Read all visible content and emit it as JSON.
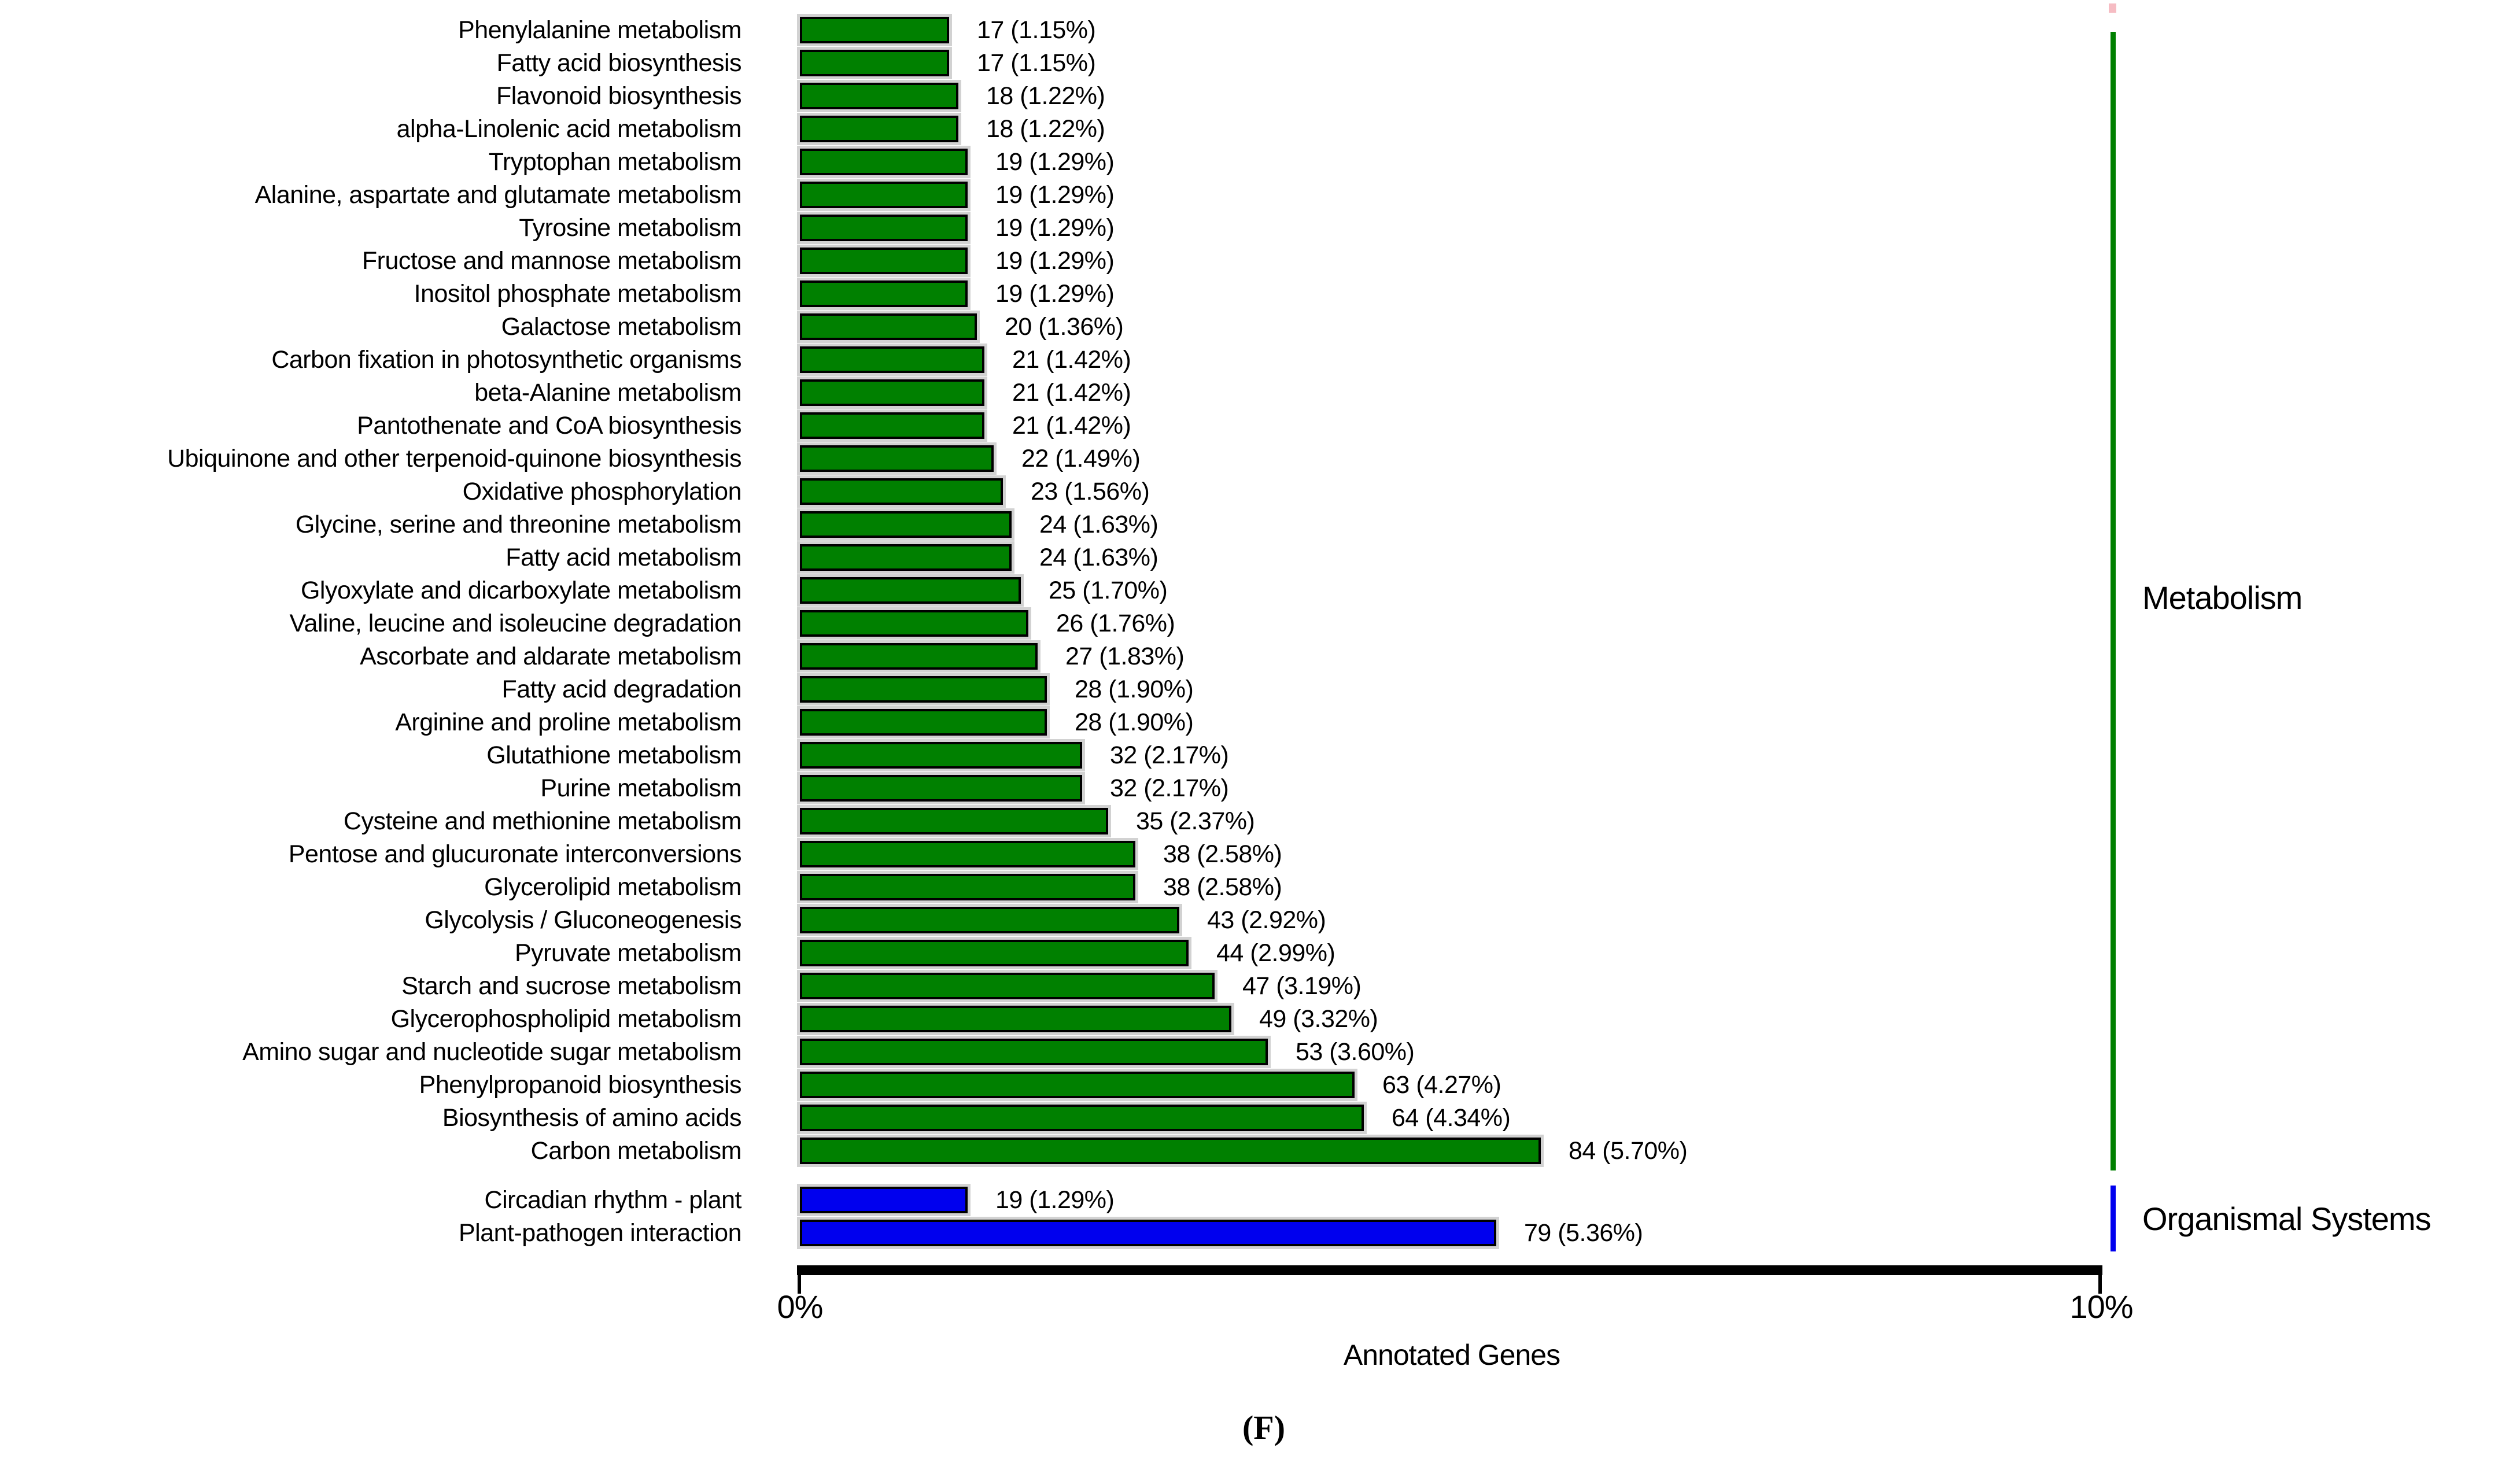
{
  "chart_data": {
    "type": "bar",
    "orientation": "horizontal",
    "title": "",
    "xlabel": "Annotated Genes",
    "ylabel": "",
    "caption": "(F)",
    "value_format": "count (percent of annotated genes)",
    "x_axis": {
      "range": [
        0,
        10
      ],
      "unit": "%",
      "tick_labels": [
        "0%",
        "10%"
      ],
      "grid": false
    },
    "legend_position": "right",
    "colors": {
      "metabolism": "#008000",
      "organismal_systems": "#0000EE",
      "bar_border": "#000000",
      "bar_halo": "#d2d2d2",
      "axis": "#000000",
      "cropped_artifact_pink": "#f6bcc3"
    },
    "groups": [
      {
        "name": "Metabolism",
        "color": "#008000",
        "items": [
          {
            "label": "Phenylalanine metabolism",
            "count": 17,
            "percent": 1.15,
            "value_label": "17 (1.15%)"
          },
          {
            "label": "Fatty acid biosynthesis",
            "count": 17,
            "percent": 1.15,
            "value_label": "17 (1.15%)"
          },
          {
            "label": "Flavonoid biosynthesis",
            "count": 18,
            "percent": 1.22,
            "value_label": "18 (1.22%)"
          },
          {
            "label": "alpha-Linolenic acid metabolism",
            "count": 18,
            "percent": 1.22,
            "value_label": "18 (1.22%)"
          },
          {
            "label": "Tryptophan metabolism",
            "count": 19,
            "percent": 1.29,
            "value_label": "19 (1.29%)"
          },
          {
            "label": "Alanine, aspartate and glutamate metabolism",
            "count": 19,
            "percent": 1.29,
            "value_label": "19 (1.29%)"
          },
          {
            "label": "Tyrosine metabolism",
            "count": 19,
            "percent": 1.29,
            "value_label": "19 (1.29%)"
          },
          {
            "label": "Fructose and mannose metabolism",
            "count": 19,
            "percent": 1.29,
            "value_label": "19 (1.29%)"
          },
          {
            "label": "Inositol phosphate metabolism",
            "count": 19,
            "percent": 1.29,
            "value_label": "19 (1.29%)"
          },
          {
            "label": "Galactose metabolism",
            "count": 20,
            "percent": 1.36,
            "value_label": "20 (1.36%)"
          },
          {
            "label": "Carbon fixation in photosynthetic organisms",
            "count": 21,
            "percent": 1.42,
            "value_label": "21 (1.42%)"
          },
          {
            "label": "beta-Alanine metabolism",
            "count": 21,
            "percent": 1.42,
            "value_label": "21 (1.42%)"
          },
          {
            "label": "Pantothenate and CoA biosynthesis",
            "count": 21,
            "percent": 1.42,
            "value_label": "21 (1.42%)"
          },
          {
            "label": "Ubiquinone and other terpenoid-quinone biosynthesis",
            "count": 22,
            "percent": 1.49,
            "value_label": "22 (1.49%)"
          },
          {
            "label": "Oxidative phosphorylation",
            "count": 23,
            "percent": 1.56,
            "value_label": "23 (1.56%)"
          },
          {
            "label": "Glycine, serine and threonine metabolism",
            "count": 24,
            "percent": 1.63,
            "value_label": "24 (1.63%)"
          },
          {
            "label": "Fatty acid metabolism",
            "count": 24,
            "percent": 1.63,
            "value_label": "24 (1.63%)"
          },
          {
            "label": "Glyoxylate and dicarboxylate metabolism",
            "count": 25,
            "percent": 1.7,
            "value_label": "25 (1.70%)"
          },
          {
            "label": "Valine, leucine and isoleucine degradation",
            "count": 26,
            "percent": 1.76,
            "value_label": "26 (1.76%)"
          },
          {
            "label": "Ascorbate and aldarate metabolism",
            "count": 27,
            "percent": 1.83,
            "value_label": "27 (1.83%)"
          },
          {
            "label": "Fatty acid degradation",
            "count": 28,
            "percent": 1.9,
            "value_label": "28 (1.90%)"
          },
          {
            "label": "Arginine and proline metabolism",
            "count": 28,
            "percent": 1.9,
            "value_label": "28 (1.90%)"
          },
          {
            "label": "Glutathione metabolism",
            "count": 32,
            "percent": 2.17,
            "value_label": "32 (2.17%)"
          },
          {
            "label": "Purine metabolism",
            "count": 32,
            "percent": 2.17,
            "value_label": "32 (2.17%)"
          },
          {
            "label": "Cysteine and methionine metabolism",
            "count": 35,
            "percent": 2.37,
            "value_label": "35 (2.37%)"
          },
          {
            "label": "Pentose and glucuronate interconversions",
            "count": 38,
            "percent": 2.58,
            "value_label": "38 (2.58%)"
          },
          {
            "label": "Glycerolipid metabolism",
            "count": 38,
            "percent": 2.58,
            "value_label": "38 (2.58%)"
          },
          {
            "label": "Glycolysis / Gluconeogenesis",
            "count": 43,
            "percent": 2.92,
            "value_label": "43 (2.92%)"
          },
          {
            "label": "Pyruvate metabolism",
            "count": 44,
            "percent": 2.99,
            "value_label": "44 (2.99%)"
          },
          {
            "label": "Starch and sucrose metabolism",
            "count": 47,
            "percent": 3.19,
            "value_label": "47 (3.19%)"
          },
          {
            "label": "Glycerophospholipid metabolism",
            "count": 49,
            "percent": 3.32,
            "value_label": "49 (3.32%)"
          },
          {
            "label": "Amino sugar and nucleotide sugar metabolism",
            "count": 53,
            "percent": 3.6,
            "value_label": "53 (3.60%)"
          },
          {
            "label": "Phenylpropanoid biosynthesis",
            "count": 63,
            "percent": 4.27,
            "value_label": "63 (4.27%)"
          },
          {
            "label": "Biosynthesis of amino acids",
            "count": 64,
            "percent": 4.34,
            "value_label": "64 (4.34%)"
          },
          {
            "label": "Carbon metabolism",
            "count": 84,
            "percent": 5.7,
            "value_label": "84 (5.70%)"
          }
        ]
      },
      {
        "name": "Organismal Systems",
        "color": "#0000EE",
        "items": [
          {
            "label": "Circadian rhythm - plant",
            "count": 19,
            "percent": 1.29,
            "value_label": "19 (1.29%)"
          },
          {
            "label": "Plant-pathogen interaction",
            "count": 79,
            "percent": 5.36,
            "value_label": "79 (5.36%)"
          }
        ]
      }
    ]
  }
}
